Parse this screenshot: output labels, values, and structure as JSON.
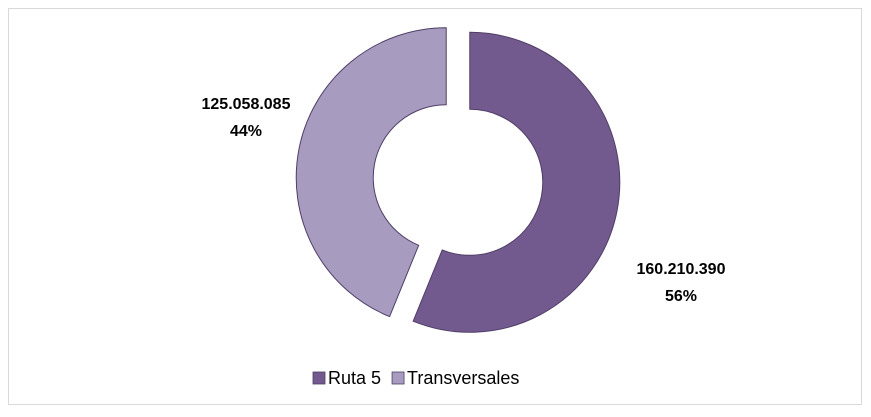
{
  "chart_data": {
    "type": "donut",
    "categories": [
      "Ruta 5",
      "Transversales"
    ],
    "values": [
      160210390,
      125058085
    ],
    "value_labels": [
      "160.210.390",
      "125.058.085"
    ],
    "percent_labels": [
      "56%",
      "44%"
    ],
    "colors": [
      "#725a8f",
      "#a89bc0"
    ],
    "legend": "bottom"
  }
}
